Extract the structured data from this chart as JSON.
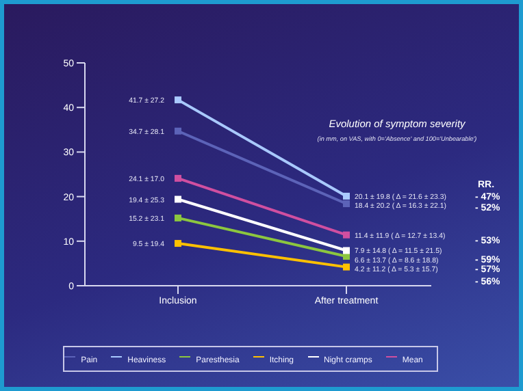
{
  "chart_data": {
    "type": "line",
    "title": "Evolution of symptom severity",
    "subtitle": "(in mm, on VAS, with 0='Absence' and 100='Unbearable')",
    "categories": [
      "Inclusion",
      "After treatment"
    ],
    "series": [
      {
        "name": "Pain",
        "color": "#5c63b8",
        "values": [
          34.7,
          18.4
        ]
      },
      {
        "name": "Heaviness",
        "color": "#a9c9ff",
        "values": [
          41.7,
          20.1
        ]
      },
      {
        "name": "Paresthesia",
        "color": "#8cc63f",
        "values": [
          15.2,
          6.6
        ]
      },
      {
        "name": "Itching",
        "color": "#ffc000",
        "values": [
          9.5,
          4.2
        ]
      },
      {
        "name": "Night cramps",
        "color": "#ffffff",
        "values": [
          19.4,
          7.9
        ]
      },
      {
        "name": "Mean",
        "color": "#d04fa0",
        "values": [
          24.1,
          11.4
        ]
      }
    ],
    "ylim": [
      0,
      50
    ],
    "yticks": [
      0,
      10,
      20,
      30,
      40,
      50
    ],
    "grid": false,
    "legend": "bottom",
    "marker": "square",
    "line_style": "solid",
    "annotations": [
      {
        "text": "41.7 ± 27.2",
        "x": "Inclusion",
        "y": 41.7
      },
      {
        "text": "34.7 ± 28.1",
        "x": "Inclusion",
        "y": 34.7
      },
      {
        "text": "24.1 ± 17.0",
        "x": "Inclusion",
        "y": 24.1
      },
      {
        "text": "19.4 ± 25.3",
        "x": "Inclusion",
        "y": 19.4
      },
      {
        "text": "15.2 ± 23.1",
        "x": "Inclusion",
        "y": 15.2
      },
      {
        "text": "9.5 ± 19.4",
        "x": "Inclusion",
        "y": 9.5
      },
      {
        "text": "20.1 ± 19.8  ( Δ = 21.6 ± 23.3)",
        "x": "After treatment",
        "y": 20.1
      },
      {
        "text": "18.4 ± 20.2  ( Δ = 16.3 ± 22.1)",
        "x": "After treatment",
        "y": 18.4
      },
      {
        "text": "11.4 ± 11.9  ( Δ = 12.7 ± 13.4)",
        "x": "After treatment",
        "y": 11.4
      },
      {
        "text": "7.9 ± 14.8  ( Δ = 11.5 ± 21.5)",
        "x": "After treatment",
        "y": 7.9
      },
      {
        "text": "6.6 ± 13.7  ( Δ = 8.6 ± 18.8)",
        "x": "After treatment",
        "y": 6.6
      },
      {
        "text": "4.2 ± 11.2  ( Δ = 5.3 ± 15.7)",
        "x": "After treatment",
        "y": 4.2
      },
      "RR.",
      "- 47%",
      "- 52%",
      "- 53%",
      "- 59%",
      "- 57%",
      "- 56%"
    ]
  }
}
